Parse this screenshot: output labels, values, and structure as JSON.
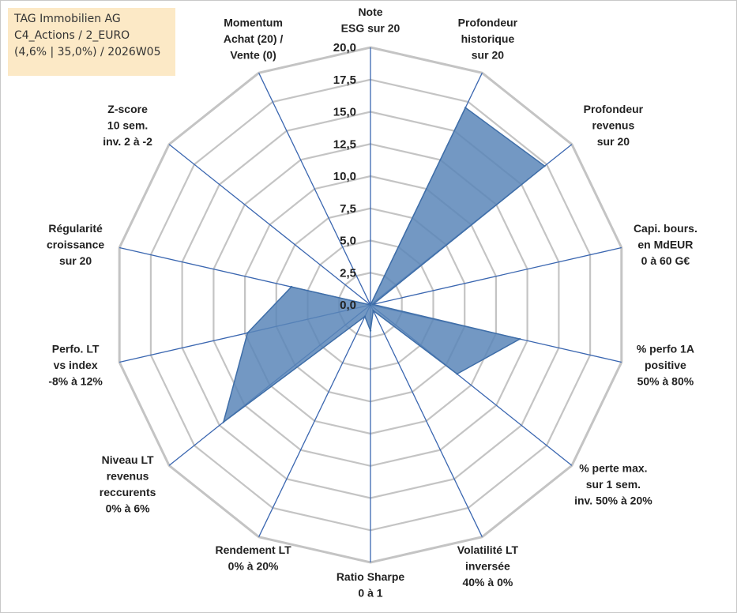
{
  "info": {
    "line1": "TAG Immobilien AG",
    "line2": "C4_Actions / 2_EURO",
    "line3": "(4,6% | 35,0%) / 2026W05"
  },
  "colors": {
    "fill": "#5b86b8",
    "stroke": "#3f6ea8",
    "spoke": "#3a66b0",
    "grid": "#c4c4c4"
  },
  "chart_data": {
    "type": "radar",
    "rmin": 0,
    "rmax": 20,
    "tick_labels": [
      "0,0",
      "2,5",
      "5,0",
      "7,5",
      "10,0",
      "12,5",
      "15,0",
      "17,5",
      "20,0"
    ],
    "ticks": [
      0,
      2.5,
      5,
      7.5,
      10,
      12.5,
      15,
      17.5,
      20
    ],
    "axes": [
      {
        "lines": [
          "Note",
          "ESG sur 20"
        ]
      },
      {
        "lines": [
          "Profondeur",
          "historique",
          "sur 20"
        ]
      },
      {
        "lines": [
          "Profondeur",
          "revenus",
          "sur 20"
        ]
      },
      {
        "lines": [
          "Capi. bours.",
          "en MdEUR",
          "0 à 60 G€"
        ]
      },
      {
        "lines": [
          "% perfo 1A",
          "positive",
          "50% à 80%"
        ]
      },
      {
        "lines": [
          "% perte max.",
          "sur 1 sem.",
          "inv. 50% à 20%"
        ]
      },
      {
        "lines": [
          "Volatilité LT",
          "inversée",
          "40% à 0%"
        ]
      },
      {
        "lines": [
          "Ratio Sharpe",
          "0 à 1"
        ]
      },
      {
        "lines": [
          "Rendement LT",
          "0% à 20%"
        ]
      },
      {
        "lines": [
          "Niveau LT",
          "revenus",
          "reccurents",
          "0% à 6%"
        ]
      },
      {
        "lines": [
          "Perfo. LT",
          "vs index",
          "-8% à 12%"
        ]
      },
      {
        "lines": [
          "Régularité",
          "croissance",
          "sur 20"
        ]
      },
      {
        "lines": [
          "Z-score",
          "10 sem.",
          "inv. 2 à -2"
        ]
      },
      {
        "lines": [
          "Momentum",
          "Achat (20) /",
          "Vente (0)"
        ]
      }
    ],
    "values": [
      0,
      17.0,
      17.3,
      0.2,
      11.9,
      8.6,
      0.5,
      2.0,
      1.0,
      14.6,
      9.8,
      6.3,
      0,
      0
    ]
  }
}
